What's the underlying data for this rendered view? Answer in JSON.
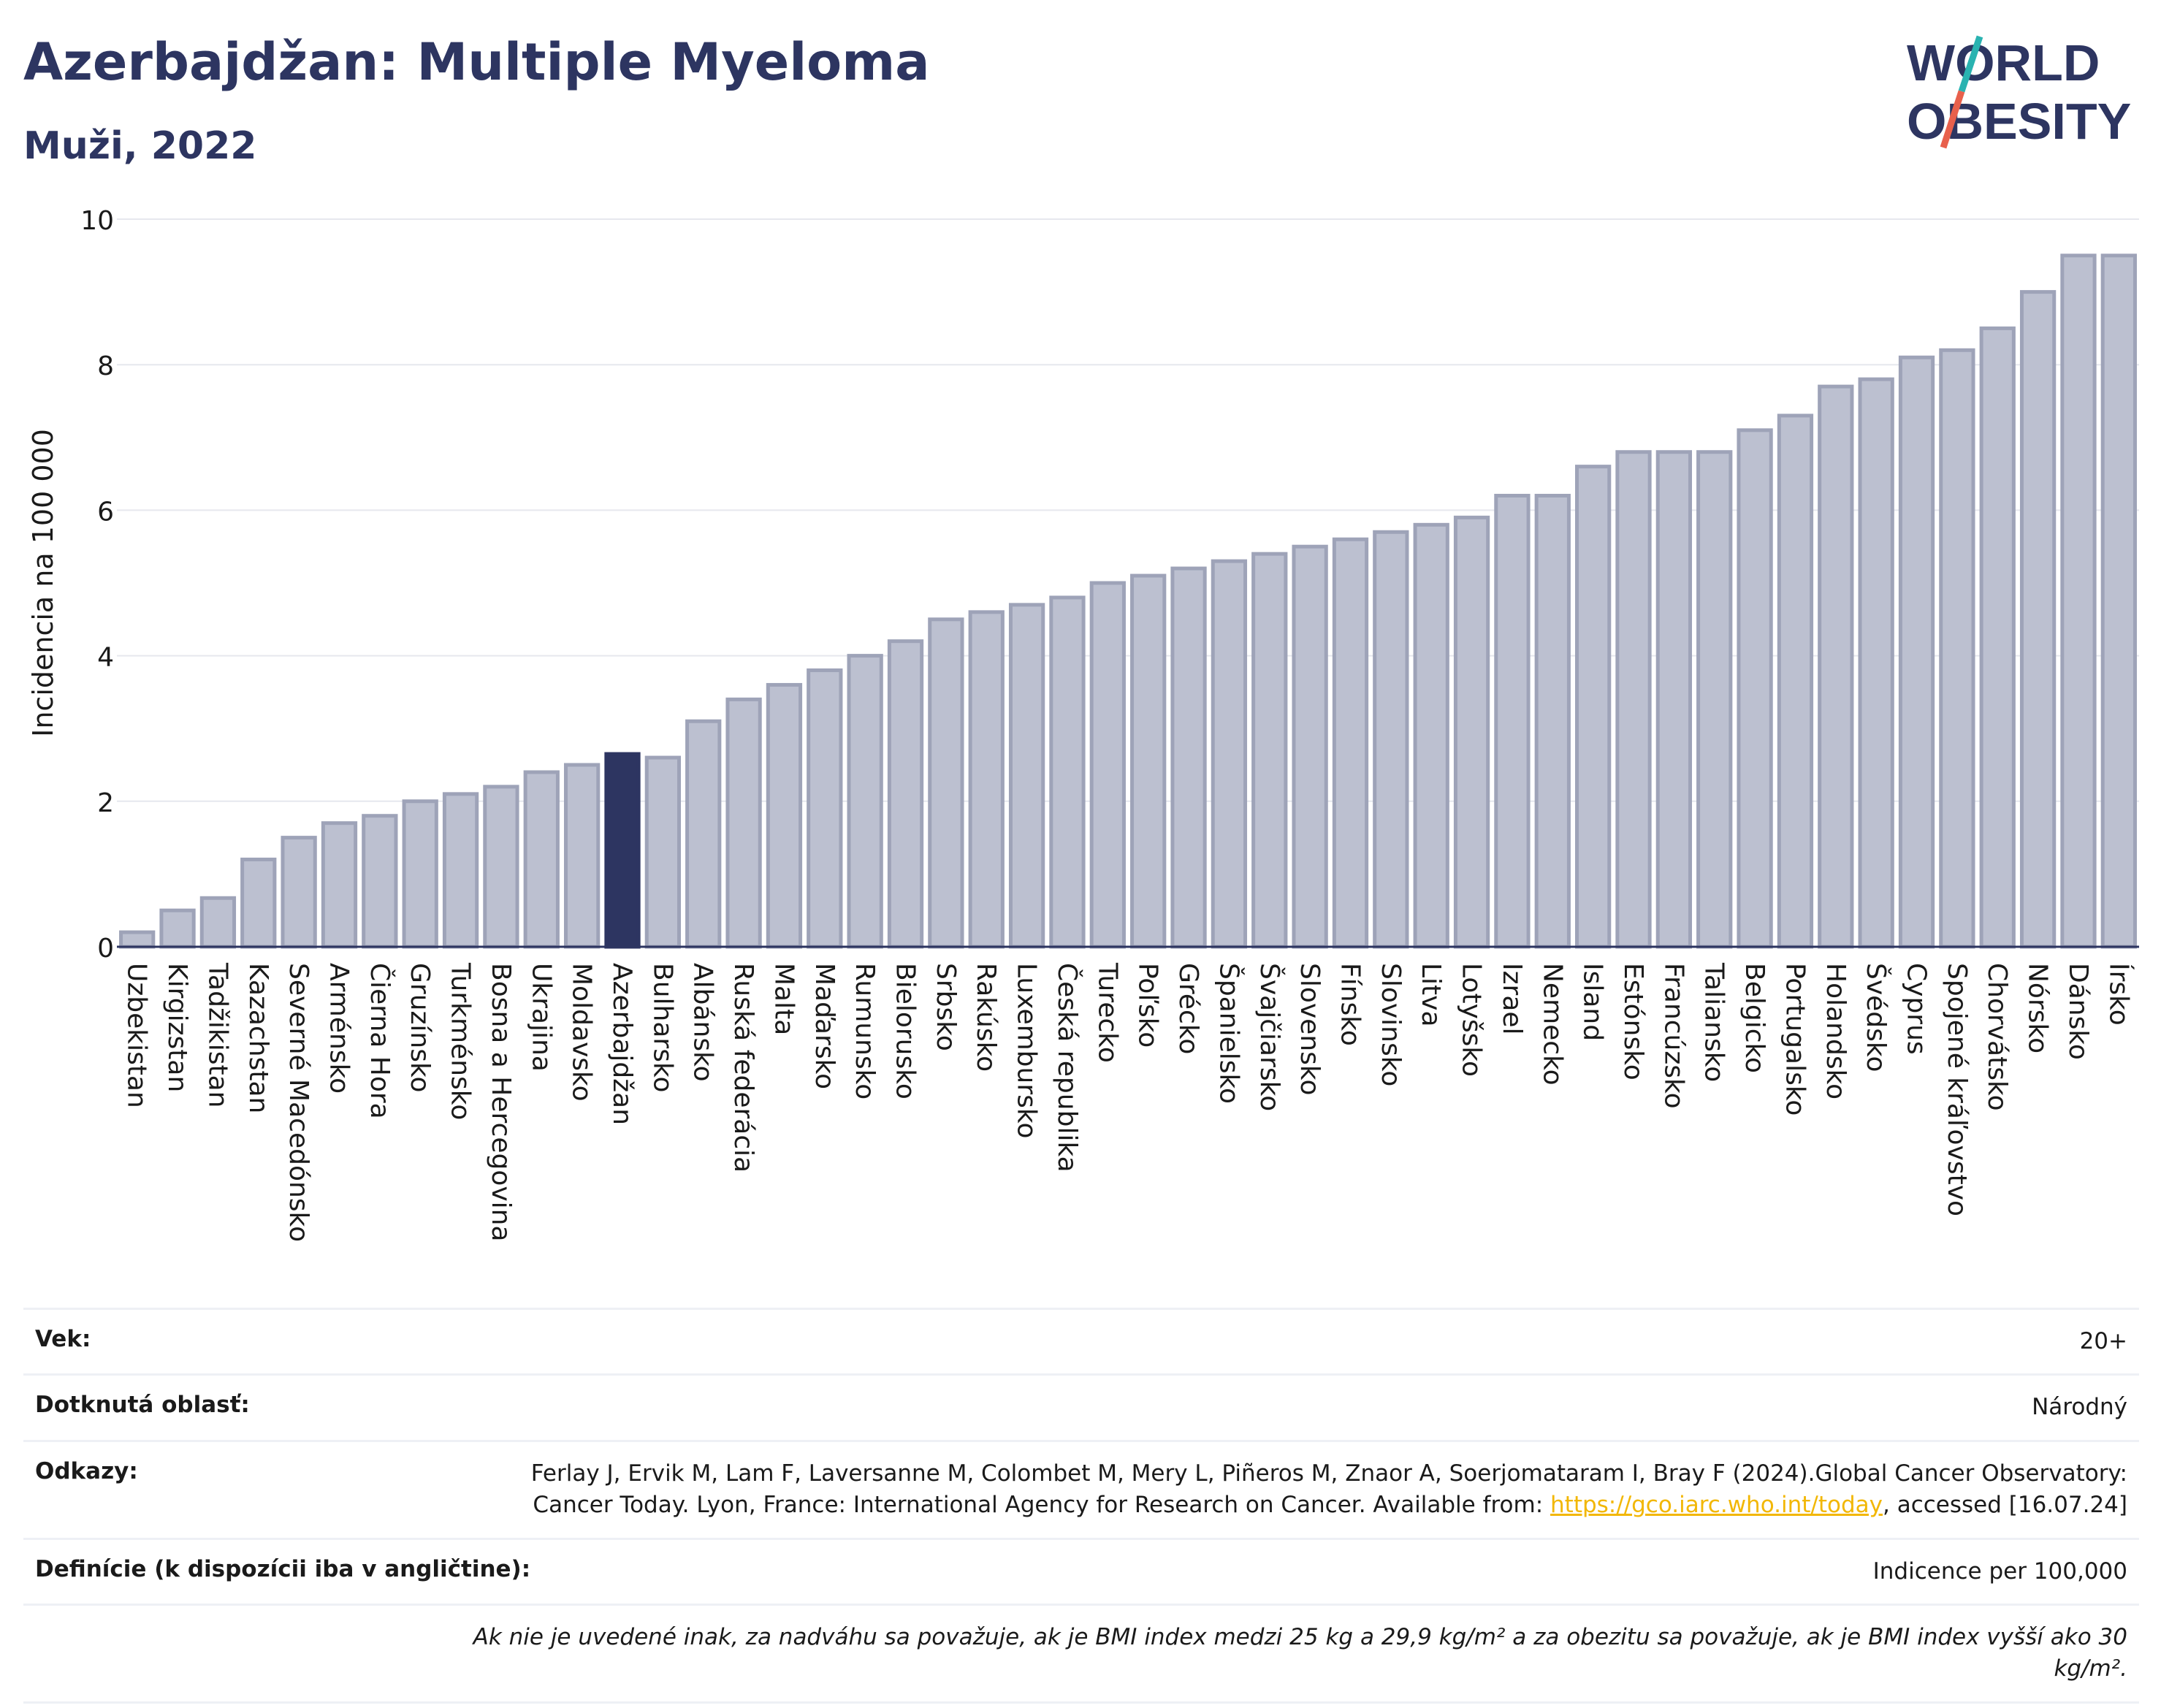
{
  "header": {
    "title": "Azerbajdžan: Multiple Myeloma",
    "subtitle": "Muži, 2022"
  },
  "logo": {
    "line1": "WORLD",
    "line2": "OBESITY",
    "colors": {
      "text": "#2d3561",
      "slash_teal": "#2ab3b1",
      "slash_red": "#e8604c"
    }
  },
  "chart_data": {
    "type": "bar",
    "title": "Azerbajdžan: Multiple Myeloma",
    "subtitle": "Muži, 2022",
    "xlabel": "",
    "ylabel": "Incidencia na 100 000",
    "ylim": [
      0,
      10
    ],
    "yticks": [
      0,
      2,
      4,
      6,
      8,
      10
    ],
    "grid": true,
    "highlight": "Azerbajdžan",
    "colors": {
      "bar": "#bcc0d0",
      "bar_border": "#9ea3b8",
      "highlight": "#2d3561"
    },
    "categories": [
      "Uzbekistan",
      "Kirgizstan",
      "Tadžikistan",
      "Kazachstan",
      "Severné Macedónsko",
      "Arménsko",
      "Čierna Hora",
      "Gruzínsko",
      "Turkménsko",
      "Bosna a Hercegovina",
      "Ukrajina",
      "Moldavsko",
      "Azerbajdžan",
      "Bulharsko",
      "Albánsko",
      "Ruská federácia",
      "Malta",
      "Maďarsko",
      "Rumunsko",
      "Bielorusko",
      "Srbsko",
      "Rakúsko",
      "Luxembursko",
      "Česká republika",
      "Turecko",
      "Poľsko",
      "Grécko",
      "Španielsko",
      "Švajčiarsko",
      "Slovensko",
      "Fínsko",
      "Slovinsko",
      "Litva",
      "Lotyšsko",
      "Izrael",
      "Nemecko",
      "Island",
      "Estónsko",
      "Francúzsko",
      "Taliansko",
      "Belgicko",
      "Portugalsko",
      "Holandsko",
      "Švédsko",
      "Cyprus",
      "Spojené kráľovstvo",
      "Chorvátsko",
      "Nórsko",
      "Dánsko",
      "Írsko"
    ],
    "values": [
      0.2,
      0.5,
      0.67,
      1.2,
      1.5,
      1.7,
      1.8,
      2.0,
      2.1,
      2.2,
      2.4,
      2.5,
      2.65,
      2.6,
      3.1,
      3.4,
      3.6,
      3.8,
      4.0,
      4.2,
      4.5,
      4.6,
      4.7,
      4.8,
      5.0,
      5.1,
      5.2,
      5.3,
      5.4,
      5.5,
      5.6,
      5.7,
      5.8,
      5.9,
      6.2,
      6.2,
      6.6,
      6.8,
      6.8,
      6.8,
      7.1,
      7.3,
      7.7,
      7.8,
      8.1,
      8.2,
      8.5,
      9.0,
      9.5,
      9.5
    ]
  },
  "info": {
    "vek_label": "Vek:",
    "vek_value": "20+",
    "oblast_label": "Dotknutá oblasť:",
    "oblast_value": "Národný",
    "odkazy_label": "Odkazy:",
    "odkazy_text": "Ferlay J, Ervik M, Lam F, Laversanne M, Colombet M, Mery L, Piñeros M, Znaor A, Soerjomataram I, Bray F (2024).Global Cancer Observatory: Cancer Today. Lyon, France: International Agency for Research on Cancer. Available from: ",
    "odkazy_link": "https://gco.iarc.who.int/today",
    "odkazy_suffix": ", accessed [16.07.24]",
    "definicie_label": "Definície (k dispozícii iba v angličtine):",
    "definicie_value": "Indicence per 100,000",
    "note": "Ak nie je uvedené inak, za nadváhu sa považuje, ak je BMI index medzi 25 kg a 29,9 kg/m² a za obezitu sa považuje, ak je BMI index vyšší ako 30 kg/m²."
  }
}
